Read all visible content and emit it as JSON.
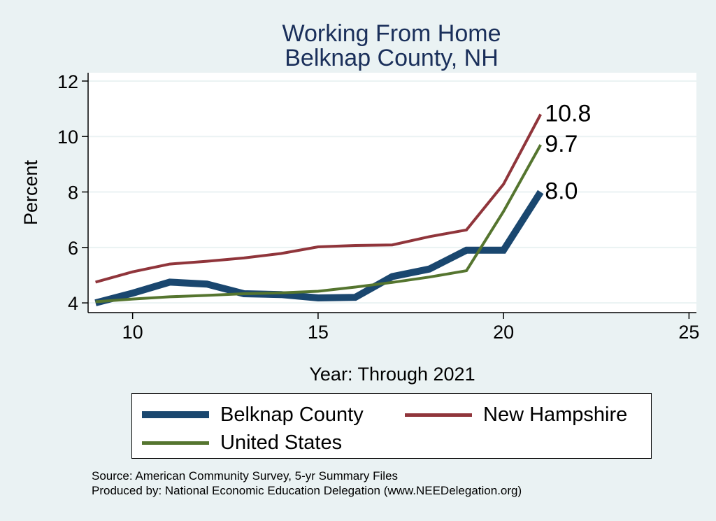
{
  "colors": {
    "background": "#eaf2f3",
    "plot_background": "#ffffff",
    "title": "#1a2f5a",
    "belknap": "#1a476f",
    "new_hampshire": "#90353b",
    "united_states": "#55752f"
  },
  "chart_data": {
    "type": "line",
    "title": "Working From Home",
    "subtitle": "Belknap County, NH",
    "xlabel": "Year: Through 2021",
    "ylabel": "Percent",
    "xlim": [
      8.8,
      25.2
    ],
    "ylim": [
      3.65,
      12.3
    ],
    "x_ticks": [
      10,
      15,
      20,
      25
    ],
    "y_ticks": [
      4,
      6,
      8,
      10,
      12
    ],
    "grid": true,
    "legend_position": "bottom",
    "series": [
      {
        "name": "Belknap County",
        "color": "#1a476f",
        "x": [
          9,
          10,
          11,
          12,
          13,
          14,
          15,
          16,
          17,
          18,
          19,
          20,
          21
        ],
        "values": [
          4.0,
          4.35,
          4.75,
          4.68,
          4.33,
          4.3,
          4.18,
          4.2,
          4.95,
          5.22,
          5.9,
          5.9,
          8.0
        ],
        "end_label": "8.0"
      },
      {
        "name": "New Hampshire",
        "color": "#90353b",
        "x": [
          9,
          10,
          11,
          12,
          13,
          14,
          15,
          16,
          17,
          18,
          19,
          20,
          21
        ],
        "values": [
          4.75,
          5.12,
          5.4,
          5.5,
          5.62,
          5.78,
          6.02,
          6.07,
          6.09,
          6.39,
          6.63,
          8.28,
          10.8
        ],
        "end_label": "10.8"
      },
      {
        "name": "United States",
        "color": "#55752f",
        "x": [
          9,
          10,
          11,
          12,
          13,
          14,
          15,
          16,
          17,
          18,
          19,
          20,
          21
        ],
        "values": [
          4.04,
          4.14,
          4.22,
          4.27,
          4.33,
          4.36,
          4.42,
          4.57,
          4.74,
          4.93,
          5.16,
          7.3,
          9.7
        ],
        "end_label": "9.7"
      }
    ]
  },
  "legend": {
    "belknap_label": "Belknap County",
    "nh_label": "New Hampshire",
    "us_label": "United States"
  },
  "notes": {
    "source": "Source: American Community Survey, 5-yr Summary Files",
    "produced": "Produced by: National Economic Education Delegation (www.NEEDelegation.org)"
  }
}
